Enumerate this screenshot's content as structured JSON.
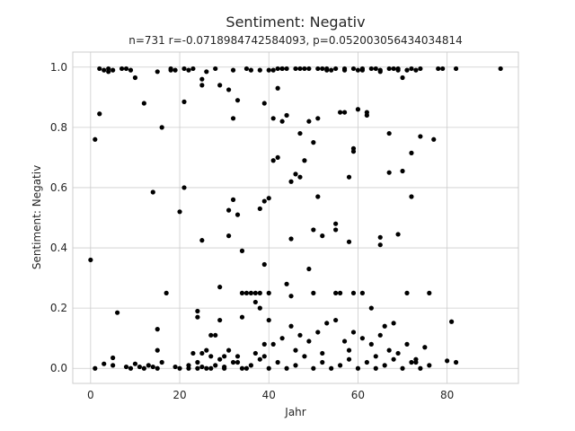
{
  "chart_data": {
    "type": "scatter",
    "title": "Sentiment: Negativ",
    "subtitle": "n=731 r=-0.0718984742584093, p=0.052003056434034814",
    "xlabel": "Jahr",
    "ylabel": "Sentiment: Negativ",
    "xlim": [
      -4,
      96
    ],
    "ylim": [
      -0.05,
      1.05
    ],
    "xticks": [
      0,
      20,
      40,
      60,
      80
    ],
    "yticks": [
      0.0,
      0.2,
      0.4,
      0.6,
      0.8,
      1.0
    ],
    "xtick_labels": [
      "0",
      "20",
      "40",
      "60",
      "80"
    ],
    "ytick_labels": [
      "0.0",
      "0.2",
      "0.4",
      "0.6",
      "0.8",
      "1.0"
    ],
    "grid": true,
    "marker_color": "#000000",
    "points": [
      [
        0,
        0.36
      ],
      [
        1,
        0.76
      ],
      [
        1,
        0.0
      ],
      [
        2,
        0.845
      ],
      [
        2,
        0.995
      ],
      [
        3,
        0.99
      ],
      [
        3,
        0.015
      ],
      [
        4,
        0.985
      ],
      [
        4,
        0.995
      ],
      [
        5,
        0.99
      ],
      [
        5,
        0.035
      ],
      [
        5,
        0.01
      ],
      [
        6,
        0.185
      ],
      [
        7,
        0.995
      ],
      [
        8,
        0.995
      ],
      [
        8,
        0.005
      ],
      [
        9,
        0.99
      ],
      [
        9,
        0.0
      ],
      [
        10,
        0.965
      ],
      [
        10,
        0.015
      ],
      [
        11,
        0.005
      ],
      [
        12,
        0.88
      ],
      [
        12,
        0.0
      ],
      [
        13,
        0.01
      ],
      [
        14,
        0.585
      ],
      [
        14,
        0.005
      ],
      [
        15,
        0.985
      ],
      [
        15,
        0.13
      ],
      [
        15,
        0.06
      ],
      [
        15,
        0.0
      ],
      [
        16,
        0.8
      ],
      [
        16,
        0.02
      ],
      [
        17,
        0.25
      ],
      [
        18,
        0.995
      ],
      [
        18,
        0.99
      ],
      [
        19,
        0.99
      ],
      [
        19,
        0.005
      ],
      [
        20,
        0.52
      ],
      [
        20,
        0.0
      ],
      [
        21,
        0.6
      ],
      [
        21,
        0.885
      ],
      [
        21,
        0.995
      ],
      [
        22,
        0.99
      ],
      [
        22,
        0.01
      ],
      [
        23,
        0.995
      ],
      [
        23,
        0.05
      ],
      [
        24,
        0.17
      ],
      [
        24,
        0.19
      ],
      [
        24,
        0.0
      ],
      [
        25,
        0.96
      ],
      [
        25,
        0.94
      ],
      [
        25,
        0.425
      ],
      [
        25,
        0.005
      ],
      [
        26,
        0.06
      ],
      [
        26,
        0.985
      ],
      [
        27,
        0.11
      ],
      [
        27,
        0.0
      ],
      [
        28,
        0.11
      ],
      [
        28,
        0.995
      ],
      [
        29,
        0.27
      ],
      [
        29,
        0.94
      ],
      [
        29,
        0.16
      ],
      [
        30,
        0.04
      ],
      [
        30,
        0.005
      ],
      [
        31,
        0.44
      ],
      [
        31,
        0.525
      ],
      [
        31,
        0.925
      ],
      [
        32,
        0.56
      ],
      [
        32,
        0.83
      ],
      [
        32,
        0.99
      ],
      [
        33,
        0.02
      ],
      [
        33,
        0.89
      ],
      [
        33,
        0.51
      ],
      [
        34,
        0.39
      ],
      [
        34,
        0.25
      ],
      [
        34,
        0.17
      ],
      [
        35,
        0.25
      ],
      [
        35,
        0.0
      ],
      [
        36,
        0.25
      ],
      [
        36,
        0.99
      ],
      [
        37,
        0.25
      ],
      [
        37,
        0.22
      ],
      [
        38,
        0.25
      ],
      [
        38,
        0.2
      ],
      [
        38,
        0.99
      ],
      [
        38,
        0.53
      ],
      [
        39,
        0.88
      ],
      [
        39,
        0.555
      ],
      [
        39,
        0.345
      ],
      [
        39,
        0.08
      ],
      [
        40,
        0.99
      ],
      [
        40,
        0.565
      ],
      [
        40,
        0.25
      ],
      [
        40,
        0.16
      ],
      [
        41,
        0.99
      ],
      [
        41,
        0.69
      ],
      [
        41,
        0.83
      ],
      [
        42,
        0.93
      ],
      [
        42,
        0.995
      ],
      [
        42,
        0.7
      ],
      [
        43,
        0.82
      ],
      [
        43,
        0.995
      ],
      [
        44,
        0.995
      ],
      [
        44,
        0.84
      ],
      [
        44,
        0.28
      ],
      [
        45,
        0.62
      ],
      [
        45,
        0.43
      ],
      [
        45,
        0.24
      ],
      [
        46,
        0.645
      ],
      [
        46,
        0.995
      ],
      [
        47,
        0.78
      ],
      [
        47,
        0.635
      ],
      [
        48,
        0.69
      ],
      [
        48,
        0.995
      ],
      [
        49,
        0.33
      ],
      [
        49,
        0.82
      ],
      [
        50,
        0.46
      ],
      [
        50,
        0.25
      ],
      [
        50,
        0.75
      ],
      [
        51,
        0.57
      ],
      [
        51,
        0.83
      ],
      [
        52,
        0.995
      ],
      [
        52,
        0.44
      ],
      [
        53,
        0.99
      ],
      [
        54,
        0.99
      ],
      [
        55,
        0.46
      ],
      [
        55,
        0.48
      ],
      [
        55,
        0.25
      ],
      [
        56,
        0.85
      ],
      [
        56,
        0.25
      ],
      [
        57,
        0.85
      ],
      [
        57,
        0.995
      ],
      [
        58,
        0.42
      ],
      [
        58,
        0.635
      ],
      [
        59,
        0.72
      ],
      [
        59,
        0.73
      ],
      [
        59,
        0.25
      ],
      [
        60,
        0.99
      ],
      [
        60,
        0.86
      ],
      [
        61,
        0.25
      ],
      [
        61,
        0.995
      ],
      [
        62,
        0.84
      ],
      [
        62,
        0.85
      ],
      [
        63,
        0.2
      ],
      [
        64,
        0.995
      ],
      [
        65,
        0.41
      ],
      [
        65,
        0.435
      ],
      [
        65,
        0.985
      ],
      [
        66,
        0.14
      ],
      [
        67,
        0.78
      ],
      [
        67,
        0.65
      ],
      [
        68,
        0.995
      ],
      [
        68,
        0.15
      ],
      [
        69,
        0.445
      ],
      [
        69,
        0.99
      ],
      [
        70,
        0.655
      ],
      [
        70,
        0.965
      ],
      [
        71,
        0.25
      ],
      [
        72,
        0.715
      ],
      [
        72,
        0.57
      ],
      [
        73,
        0.99
      ],
      [
        73,
        0.02
      ],
      [
        74,
        0.77
      ],
      [
        74,
        0.995
      ],
      [
        75,
        0.07
      ],
      [
        76,
        0.25
      ],
      [
        77,
        0.76
      ],
      [
        78,
        0.995
      ],
      [
        79,
        0.995
      ],
      [
        80,
        0.025
      ],
      [
        81,
        0.155
      ],
      [
        82,
        0.02
      ],
      [
        82,
        0.995
      ],
      [
        92,
        0.995
      ],
      [
        22,
        0.0
      ],
      [
        24,
        0.02
      ],
      [
        26,
        0.0
      ],
      [
        28,
        0.01
      ],
      [
        30,
        0.0
      ],
      [
        32,
        0.02
      ],
      [
        34,
        0.0
      ],
      [
        36,
        0.01
      ],
      [
        38,
        0.03
      ],
      [
        40,
        0.0
      ],
      [
        42,
        0.02
      ],
      [
        44,
        0.0
      ],
      [
        46,
        0.01
      ],
      [
        48,
        0.04
      ],
      [
        50,
        0.0
      ],
      [
        52,
        0.02
      ],
      [
        54,
        0.0
      ],
      [
        56,
        0.01
      ],
      [
        58,
        0.03
      ],
      [
        60,
        0.0
      ],
      [
        62,
        0.02
      ],
      [
        64,
        0.0
      ],
      [
        66,
        0.01
      ],
      [
        68,
        0.03
      ],
      [
        70,
        0.0
      ],
      [
        72,
        0.02
      ],
      [
        74,
        0.0
      ],
      [
        76,
        0.01
      ],
      [
        46,
        0.06
      ],
      [
        52,
        0.05
      ],
      [
        58,
        0.06
      ],
      [
        64,
        0.04
      ],
      [
        35,
        0.995
      ],
      [
        43,
        0.995
      ],
      [
        47,
        0.995
      ],
      [
        49,
        0.995
      ],
      [
        51,
        0.995
      ],
      [
        53,
        0.995
      ],
      [
        55,
        0.995
      ],
      [
        57,
        0.99
      ],
      [
        59,
        0.995
      ],
      [
        61,
        0.99
      ],
      [
        63,
        0.995
      ],
      [
        65,
        0.99
      ],
      [
        67,
        0.995
      ],
      [
        69,
        0.995
      ],
      [
        71,
        0.99
      ],
      [
        72,
        0.995
      ],
      [
        41,
        0.08
      ],
      [
        43,
        0.1
      ],
      [
        45,
        0.14
      ],
      [
        47,
        0.11
      ],
      [
        49,
        0.09
      ],
      [
        51,
        0.12
      ],
      [
        53,
        0.15
      ],
      [
        55,
        0.16
      ],
      [
        57,
        0.09
      ],
      [
        59,
        0.12
      ],
      [
        61,
        0.1
      ],
      [
        63,
        0.08
      ],
      [
        65,
        0.11
      ],
      [
        67,
        0.06
      ],
      [
        69,
        0.05
      ],
      [
        71,
        0.08
      ],
      [
        73,
        0.03
      ],
      [
        39,
        0.04
      ],
      [
        37,
        0.05
      ],
      [
        33,
        0.04
      ],
      [
        31,
        0.06
      ],
      [
        29,
        0.03
      ],
      [
        27,
        0.04
      ],
      [
        25,
        0.05
      ]
    ]
  }
}
